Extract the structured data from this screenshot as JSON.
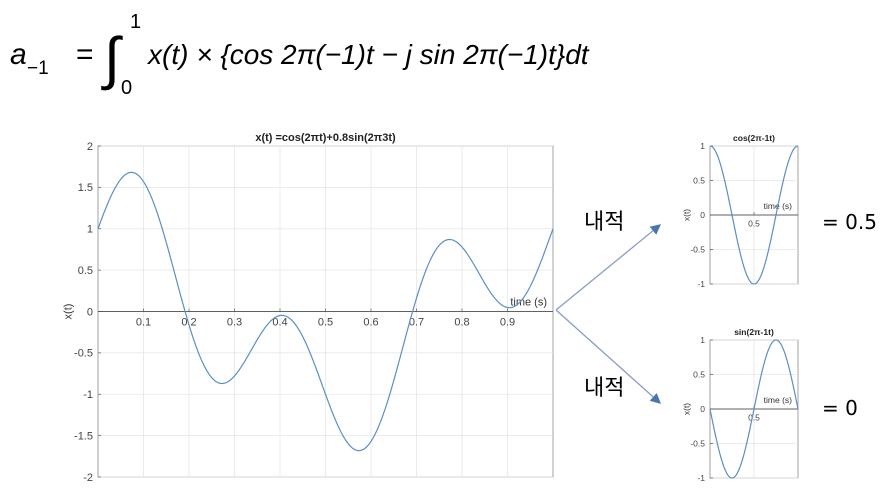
{
  "formula": {
    "lhs": "a",
    "lhs_sub": "−1",
    "equals": "=",
    "integral": "∫",
    "upper": "1",
    "lower": "0",
    "body": "x(t) × {cos 2π(−1)t − j sin 2π(−1)t}dt"
  },
  "inner_product_label_top": "내적",
  "inner_product_label_bottom": "내적",
  "result_top": "= 0.5",
  "result_bottom": "= 0",
  "chart_data": [
    {
      "type": "line",
      "title": "x(t) =cos(2πt)+0.8sin(2π3t)",
      "xlabel": "time (s)",
      "ylabel": "x(t)",
      "xlim": [
        0,
        1
      ],
      "ylim": [
        -2,
        2
      ],
      "x_ticks": [
        "0.1",
        "0.2",
        "0.3",
        "0.4",
        "0.5",
        "0.6",
        "0.7",
        "0.8",
        "0.9"
      ],
      "y_ticks": [
        "2",
        "1.5",
        "1",
        "0.5",
        "0",
        "-0.5",
        "-1",
        "-1.5",
        "-2"
      ],
      "grid": true,
      "series": [
        {
          "function": "cos(2πt)+0.8sin(6πt)",
          "color": "#5b8fc7"
        }
      ]
    },
    {
      "type": "line",
      "title": "cos(2π-1t)",
      "xlabel": "time (s)",
      "ylabel": "x(t)",
      "xlim": [
        0,
        1
      ],
      "ylim": [
        -1,
        1
      ],
      "x_ticks": [
        "0.5"
      ],
      "y_ticks": [
        "1",
        "0.5",
        "0",
        "-0.5",
        "-1"
      ],
      "grid": true,
      "series": [
        {
          "function": "cos(2πt)",
          "color": "#5b8fc7"
        }
      ]
    },
    {
      "type": "line",
      "title": "sin(2π-1t)",
      "xlabel": "time (s)",
      "ylabel": "x(t)",
      "xlim": [
        0,
        1
      ],
      "ylim": [
        -1,
        1
      ],
      "x_ticks": [
        "0.5"
      ],
      "y_ticks": [
        "1",
        "0.5",
        "0",
        "-0.5",
        "-1"
      ],
      "grid": true,
      "series": [
        {
          "function": "sin(-2πt)",
          "color": "#5b8fc7"
        }
      ]
    }
  ]
}
